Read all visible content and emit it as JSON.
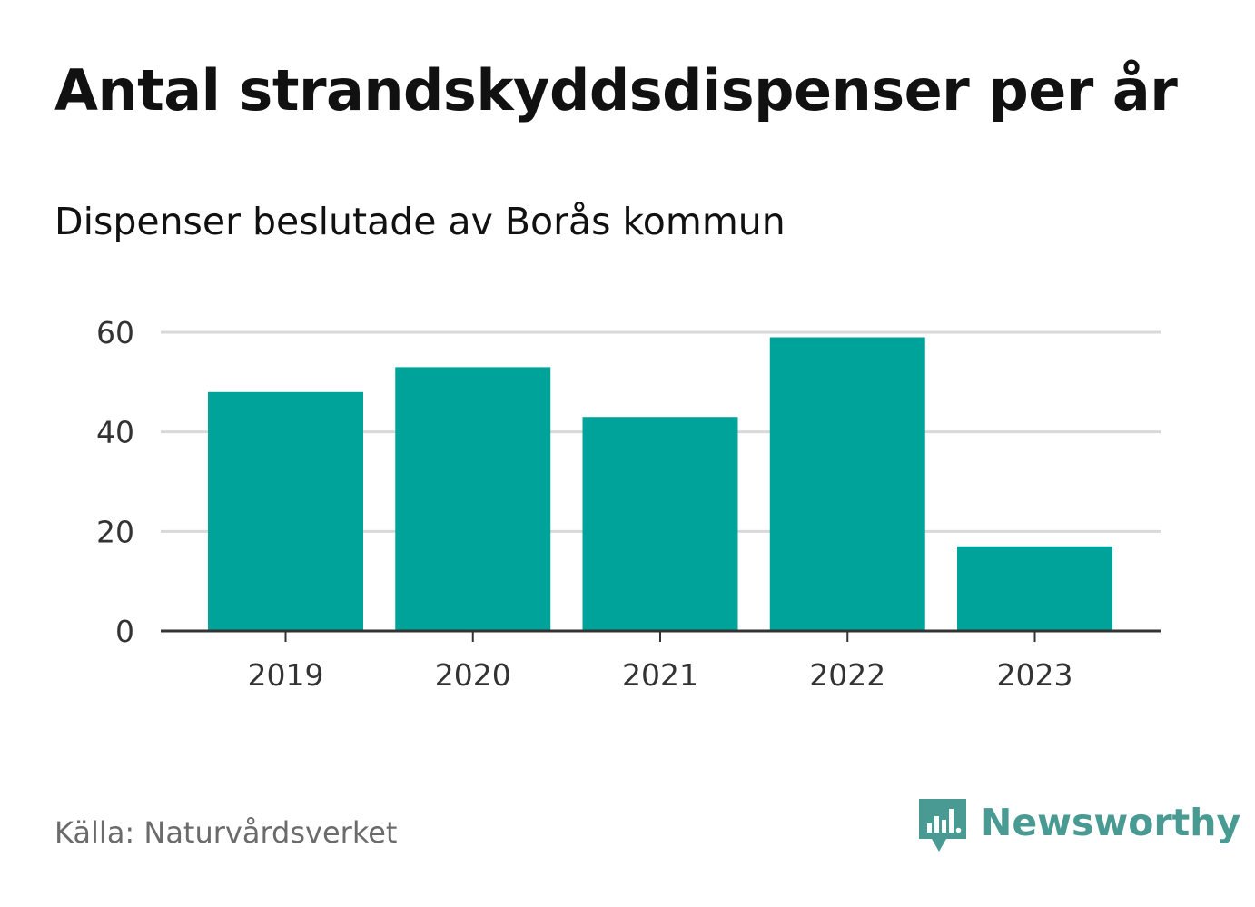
{
  "title": "Antal strandskyddsdispenser per år",
  "subtitle": "Dispenser beslutade av Borås kommun",
  "source": "Källa: Naturvårdsverket",
  "brand": {
    "name": "Newsworthy",
    "color": "#4a9a94"
  },
  "colors": {
    "bar": "#00a39a",
    "grid": "#d9d9d9",
    "axis": "#333333"
  },
  "chart_data": {
    "type": "bar",
    "title": "Antal strandskyddsdispenser per år",
    "subtitle": "Dispenser beslutade av Borås kommun",
    "categories": [
      "2019",
      "2020",
      "2021",
      "2022",
      "2023"
    ],
    "values": [
      48,
      53,
      43,
      59,
      17
    ],
    "xlabel": "",
    "ylabel": "",
    "ylim": [
      0,
      60
    ],
    "yticks": [
      0,
      20,
      40,
      60
    ],
    "grid": true,
    "legend": "none"
  }
}
